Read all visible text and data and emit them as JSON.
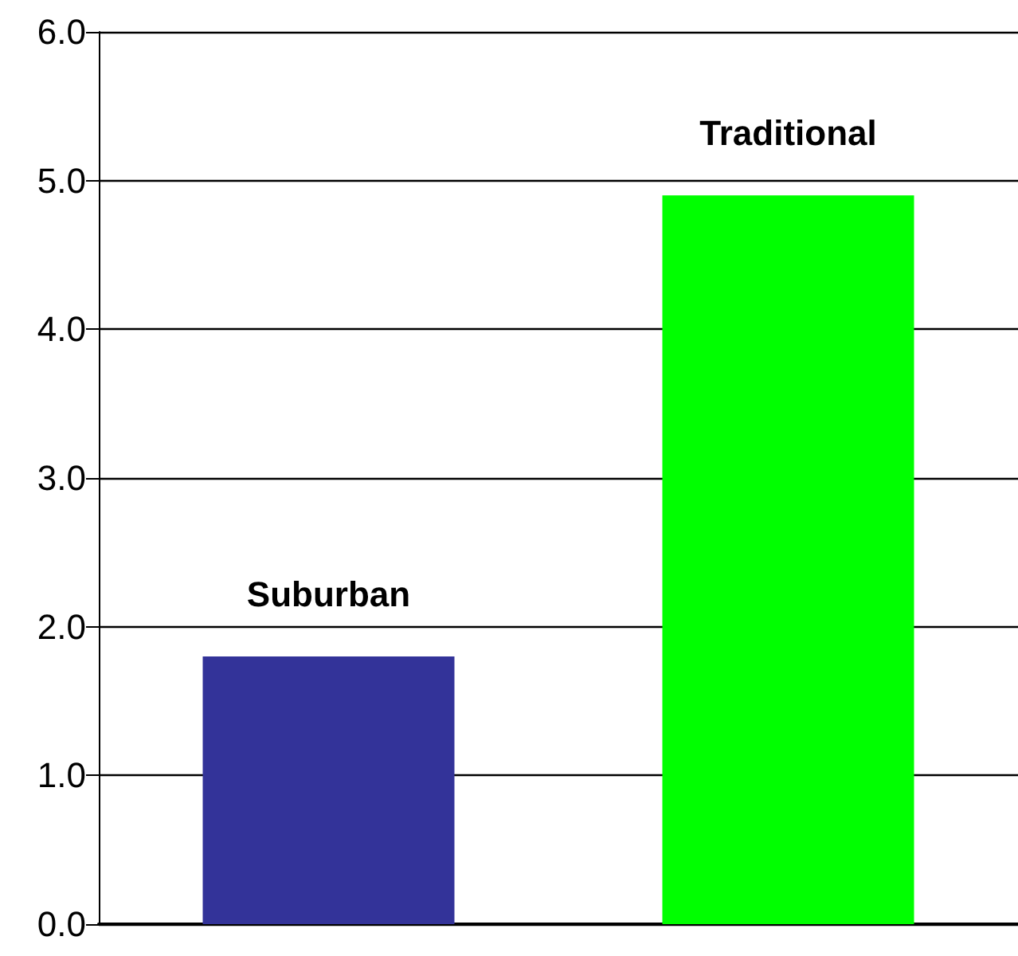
{
  "chart_data": {
    "type": "bar",
    "categories": [
      "Suburban",
      "Traditional"
    ],
    "values": [
      1.8,
      4.9
    ],
    "colors": [
      "#333399",
      "#00ff00"
    ],
    "ylim": [
      0,
      6
    ],
    "yticks": [
      {
        "value": 0,
        "label": "0.0"
      },
      {
        "value": 1,
        "label": "1.0"
      },
      {
        "value": 2,
        "label": "2.0"
      },
      {
        "value": 3,
        "label": "3.0"
      },
      {
        "value": 4,
        "label": "4.0"
      },
      {
        "value": 5,
        "label": "5.0"
      },
      {
        "value": 6,
        "label": "6.0"
      }
    ],
    "grid": "y",
    "tick_labels": "y"
  }
}
